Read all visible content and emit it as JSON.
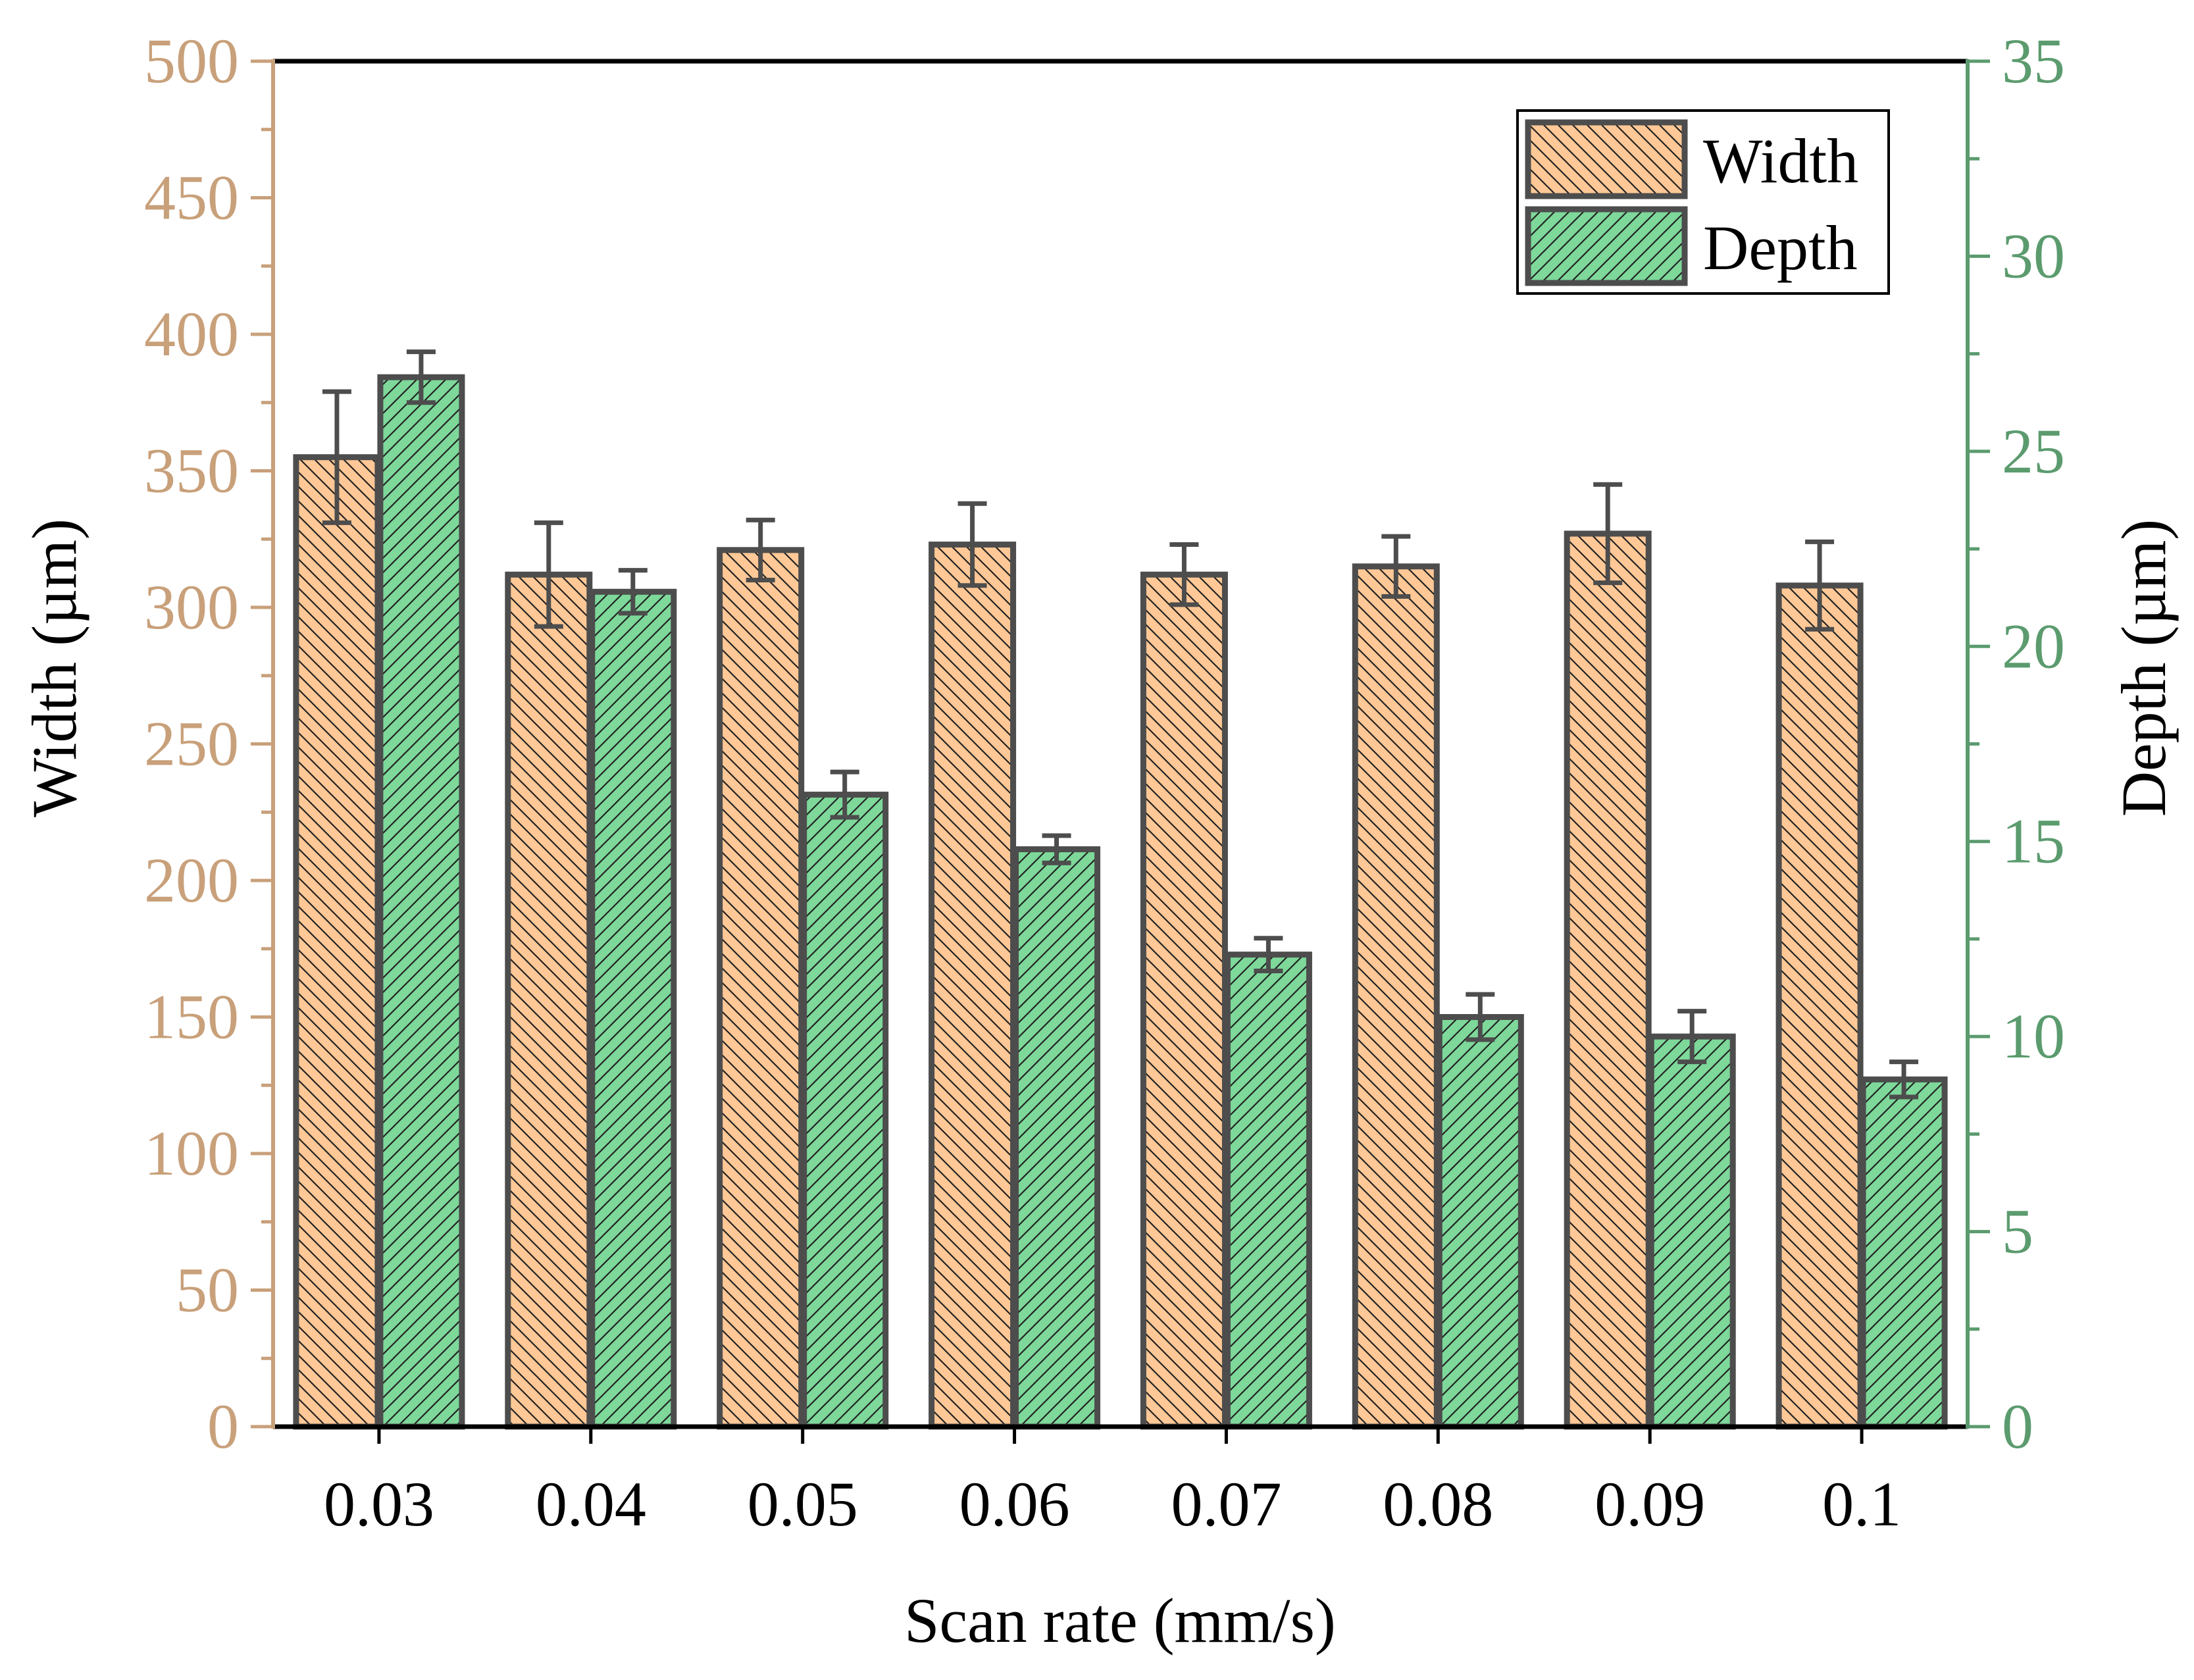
{
  "chart_data": {
    "type": "bar",
    "title": "",
    "xlabel": "Scan rate (mm/s)",
    "categories": [
      "0.03",
      "0.04",
      "0.05",
      "0.06",
      "0.07",
      "0.08",
      "0.09",
      "0.1"
    ],
    "series": [
      {
        "name": "Width",
        "axis": "left",
        "values": [
          355,
          312,
          321,
          323,
          312,
          315,
          327,
          308
        ],
        "errors": [
          24,
          19,
          11,
          15,
          11,
          11,
          18,
          16
        ],
        "color": "#FFC896",
        "hatch": "backslash"
      },
      {
        "name": "Depth",
        "axis": "right",
        "values": [
          26.9,
          21.4,
          16.2,
          14.8,
          12.1,
          10.5,
          10.0,
          8.9
        ],
        "errors": [
          0.65,
          0.55,
          0.58,
          0.35,
          0.42,
          0.58,
          0.65,
          0.45
        ],
        "color": "#7DD89A",
        "hatch": "slash"
      }
    ],
    "y_left": {
      "label": "Width (µm)",
      "ylim": [
        0,
        500
      ],
      "ticks": [
        "0",
        "50",
        "100",
        "150",
        "200",
        "250",
        "300",
        "350",
        "400",
        "450",
        "500"
      ],
      "color": "#C8A07A"
    },
    "y_right": {
      "label": "Depth (µm)",
      "ylim": [
        0,
        35
      ],
      "ticks": [
        "0",
        "5",
        "10",
        "15",
        "20",
        "25",
        "30",
        "35"
      ],
      "color": "#5B9B6E"
    },
    "legend": {
      "position": "top-right",
      "entries": [
        "Width",
        "Depth"
      ]
    },
    "outline_color": "#4D4D4D"
  }
}
